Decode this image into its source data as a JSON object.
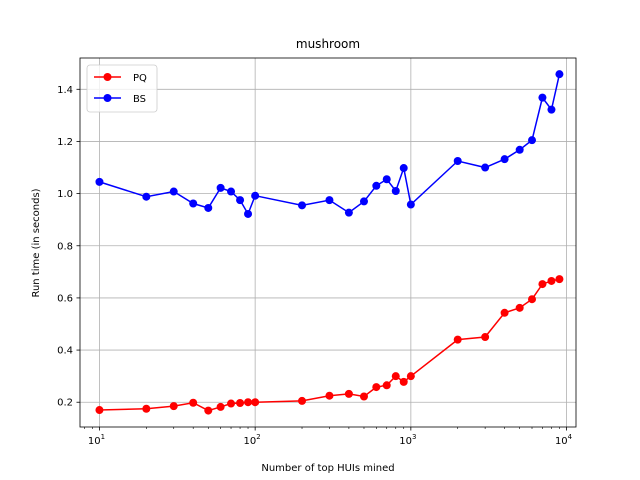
{
  "chart_data": {
    "type": "line",
    "title": "mushroom",
    "xlabel": "Number of top HUIs mined",
    "ylabel": "Run time (in seconds)",
    "xscale": "log",
    "xlim": [
      7.5,
      11500
    ],
    "ylim": [
      0.105,
      1.52
    ],
    "x_ticks": [
      {
        "value": 10,
        "base": "10",
        "exp": "1"
      },
      {
        "value": 100,
        "base": "10",
        "exp": "2"
      },
      {
        "value": 1000,
        "base": "10",
        "exp": "3"
      },
      {
        "value": 10000,
        "base": "10",
        "exp": "4"
      }
    ],
    "y_ticks": [
      {
        "value": 0.2,
        "label": "0.2"
      },
      {
        "value": 0.4,
        "label": "0.4"
      },
      {
        "value": 0.6,
        "label": "0.6"
      },
      {
        "value": 0.8,
        "label": "0.8"
      },
      {
        "value": 1.0,
        "label": "1.0"
      },
      {
        "value": 1.2,
        "label": "1.2"
      },
      {
        "value": 1.4,
        "label": "1.4"
      }
    ],
    "grid": true,
    "legend_position": "top-left",
    "x": [
      10,
      20,
      30,
      40,
      50,
      60,
      70,
      80,
      90,
      100,
      200,
      300,
      400,
      500,
      600,
      700,
      800,
      900,
      1000,
      2000,
      3000,
      4000,
      5000,
      6000,
      7000,
      8000,
      9000
    ],
    "series": [
      {
        "name": "PQ",
        "color": "#ff0000",
        "values": [
          0.17,
          0.175,
          0.185,
          0.198,
          0.168,
          0.182,
          0.195,
          0.197,
          0.2,
          0.2,
          0.205,
          0.225,
          0.232,
          0.222,
          0.258,
          0.265,
          0.3,
          0.278,
          0.3,
          0.44,
          0.45,
          0.543,
          0.562,
          0.595,
          0.653,
          0.665,
          0.672
        ]
      },
      {
        "name": "BS",
        "color": "#0000ff",
        "values": [
          1.045,
          0.988,
          1.008,
          0.962,
          0.945,
          1.022,
          1.008,
          0.975,
          0.922,
          0.992,
          0.955,
          0.975,
          0.927,
          0.97,
          1.03,
          1.055,
          1.01,
          1.098,
          0.958,
          1.125,
          1.1,
          1.132,
          1.168,
          1.205,
          1.368,
          1.322,
          1.458
        ]
      }
    ]
  }
}
